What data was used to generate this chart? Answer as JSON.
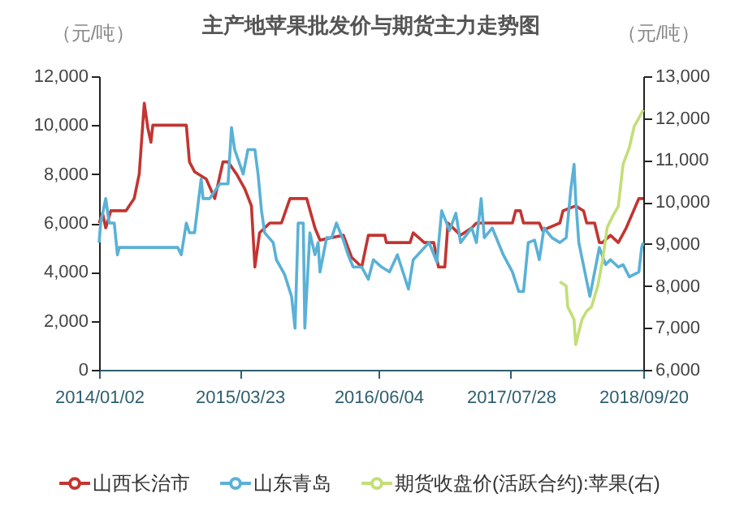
{
  "chart_data": {
    "type": "line",
    "title": "主产地苹果批发价与期货主力走势图",
    "ylabel": "（元/吨）",
    "y2label": "（元/吨）",
    "xlim": [
      "2014-01-02",
      "2018-09-20"
    ],
    "xticks": [
      {
        "value": "2014-01-02",
        "label": "2014/01/02"
      },
      {
        "value": "2015-03-23",
        "label": "2015/03/23"
      },
      {
        "value": "2016-06-04",
        "label": "2016/06/04"
      },
      {
        "value": "2017-07-28",
        "label": "2017/07/28"
      },
      {
        "value": "2018-09-20",
        "label": "2018/09/20"
      }
    ],
    "ylim": [
      0,
      12000
    ],
    "yticks": [
      0,
      {
        "value": 2000,
        "label": "2,000"
      },
      {
        "value": 4000,
        "label": "4,000"
      },
      {
        "value": 6000,
        "label": "6,000"
      },
      {
        "value": 8000,
        "label": "8,000"
      },
      {
        "value": 10000,
        "label": "10,000"
      },
      {
        "value": 12000,
        "label": "12,000"
      }
    ],
    "y2lim": [
      6000,
      13000
    ],
    "y2ticks": [
      {
        "value": 6000,
        "label": "6,000"
      },
      {
        "value": 7000,
        "label": "7,000"
      },
      {
        "value": 8000,
        "label": "8,000"
      },
      {
        "value": 9000,
        "label": "9,000"
      },
      {
        "value": 10000,
        "label": "10,000"
      },
      {
        "value": 11000,
        "label": "11,000"
      },
      {
        "value": 12000,
        "label": "12,000"
      },
      {
        "value": 13000,
        "label": "13,000"
      }
    ],
    "legend": "bottom",
    "line_style": "solid",
    "series": [
      {
        "name": "山西长治市",
        "color": "#c23531",
        "x": [
          "2014-01-02",
          "2014-01-13",
          "2014-01-23",
          "2014-02-08",
          "2014-03-28",
          "2014-04-23",
          "2014-05-09",
          "2014-05-25",
          "2014-06-05",
          "2014-06-15",
          "2014-06-21",
          "2014-10-05",
          "2014-10-15",
          "2014-10-31",
          "2014-12-07",
          "2015-01-03",
          "2015-01-29",
          "2015-02-14",
          "2015-03-13",
          "2015-04-08",
          "2015-04-29",
          "2015-05-10",
          "2015-05-25",
          "2015-06-26",
          "2015-08-02",
          "2015-08-29",
          "2015-10-21",
          "2015-11-16",
          "2015-12-02",
          "2016-02-14",
          "2016-03-11",
          "2016-04-12",
          "2016-05-03",
          "2016-06-24",
          "2016-06-29",
          "2016-09-12",
          "2016-09-22",
          "2016-10-27",
          "2016-11-26",
          "2016-12-11",
          "2016-12-31",
          "2017-01-10",
          "2017-02-19",
          "2017-03-26",
          "2017-04-10",
          "2017-08-02",
          "2017-08-12",
          "2017-08-27",
          "2017-09-06",
          "2017-10-26",
          "2017-11-05",
          "2017-12-30",
          "2018-01-09",
          "2018-02-18",
          "2018-03-15",
          "2018-03-25",
          "2018-04-19",
          "2018-05-04",
          "2018-05-14",
          "2018-06-08",
          "2018-07-03",
          "2018-07-28",
          "2018-09-06",
          "2018-09-20"
        ],
        "values": [
          6000,
          6400,
          5800,
          6500,
          6500,
          7000,
          8000,
          10900,
          9900,
          9300,
          10000,
          10000,
          8500,
          8100,
          7800,
          7000,
          8500,
          8500,
          8000,
          7400,
          6700,
          4200,
          5600,
          6000,
          6000,
          7000,
          7000,
          5800,
          5300,
          5500,
          4600,
          4200,
          5500,
          5500,
          5200,
          5200,
          5600,
          5200,
          5200,
          4200,
          4200,
          6000,
          5500,
          5800,
          6000,
          6000,
          6500,
          6500,
          6000,
          6000,
          5700,
          6000,
          6500,
          6700,
          6500,
          6000,
          6000,
          5200,
          5200,
          5500,
          5200,
          5800,
          7000,
          7000
        ]
      },
      {
        "name": "山东青岛",
        "color": "#5ab1d6",
        "x": [
          "2014-01-02",
          "2014-01-07",
          "2014-01-23",
          "2014-02-03",
          "2014-02-19",
          "2014-03-01",
          "2014-03-07",
          "2014-09-08",
          "2014-09-19",
          "2014-10-05",
          "2014-10-15",
          "2014-10-31",
          "2014-11-21",
          "2014-11-27",
          "2014-12-18",
          "2015-01-19",
          "2015-02-14",
          "2015-02-25",
          "2015-03-07",
          "2015-04-03",
          "2015-04-18",
          "2015-05-10",
          "2015-05-20",
          "2015-05-31",
          "2015-06-10",
          "2015-07-07",
          "2015-07-17",
          "2015-08-12",
          "2015-09-03",
          "2015-09-14",
          "2015-09-24",
          "2015-10-10",
          "2015-10-15",
          "2015-10-31",
          "2015-11-16",
          "2015-11-26",
          "2015-12-02",
          "2015-12-23",
          "2016-01-08",
          "2016-01-23",
          "2016-02-14",
          "2016-02-29",
          "2016-03-16",
          "2016-04-12",
          "2016-05-03",
          "2016-05-19",
          "2016-06-14",
          "2016-07-09",
          "2016-08-03",
          "2016-09-07",
          "2016-09-22",
          "2016-11-11",
          "2016-12-06",
          "2016-12-21",
          "2017-01-15",
          "2017-02-04",
          "2017-02-19",
          "2017-03-26",
          "2017-04-10",
          "2017-04-25",
          "2017-05-05",
          "2017-05-30",
          "2017-07-04",
          "2017-08-02",
          "2017-08-22",
          "2017-09-06",
          "2017-09-21",
          "2017-10-11",
          "2017-10-26",
          "2017-11-10",
          "2017-12-05",
          "2017-12-30",
          "2018-01-19",
          "2018-02-03",
          "2018-02-13",
          "2018-02-18",
          "2018-02-28",
          "2018-04-04",
          "2018-04-19",
          "2018-05-04",
          "2018-05-24",
          "2018-06-08",
          "2018-07-03",
          "2018-07-18",
          "2018-08-07",
          "2018-09-06",
          "2018-09-15",
          "2018-09-20"
        ],
        "values": [
          5200,
          6000,
          7000,
          6000,
          6000,
          4700,
          5000,
          5000,
          4700,
          6000,
          5600,
          5600,
          7800,
          7000,
          7000,
          7600,
          7600,
          9900,
          9000,
          8000,
          9000,
          9000,
          8000,
          6500,
          5600,
          5200,
          4500,
          3900,
          3000,
          1700,
          6000,
          6000,
          1700,
          5600,
          4700,
          5200,
          4000,
          5400,
          5400,
          6000,
          5300,
          4700,
          4200,
          4200,
          3700,
          4500,
          4200,
          4000,
          4700,
          3300,
          4500,
          5200,
          4400,
          6500,
          5700,
          6400,
          5200,
          5800,
          5200,
          7000,
          5400,
          5800,
          4700,
          4000,
          3200,
          3200,
          5200,
          5300,
          4500,
          5800,
          5400,
          5200,
          5400,
          7400,
          8400,
          7000,
          5200,
          3000,
          4000,
          5000,
          4300,
          4500,
          4200,
          4300,
          3800,
          4000,
          5000,
          5200
        ]
      },
      {
        "name": "期货收盘价(活跃合约):苹果(右)",
        "color": "#c3de77",
        "axis": "y2",
        "x": [
          "2017-12-30",
          "2018-01-19",
          "2018-01-24",
          "2018-02-13",
          "2018-02-18",
          "2018-03-10",
          "2018-03-25",
          "2018-04-09",
          "2018-04-29",
          "2018-05-14",
          "2018-05-29",
          "2018-06-18",
          "2018-07-03",
          "2018-07-18",
          "2018-08-07",
          "2018-08-22",
          "2018-09-06",
          "2018-09-20"
        ],
        "values": [
          8100,
          8000,
          7500,
          7200,
          6600,
          7200,
          7400,
          7500,
          8000,
          8600,
          9400,
          9700,
          9900,
          10900,
          11300,
          11800,
          12000,
          12200
        ]
      }
    ]
  }
}
